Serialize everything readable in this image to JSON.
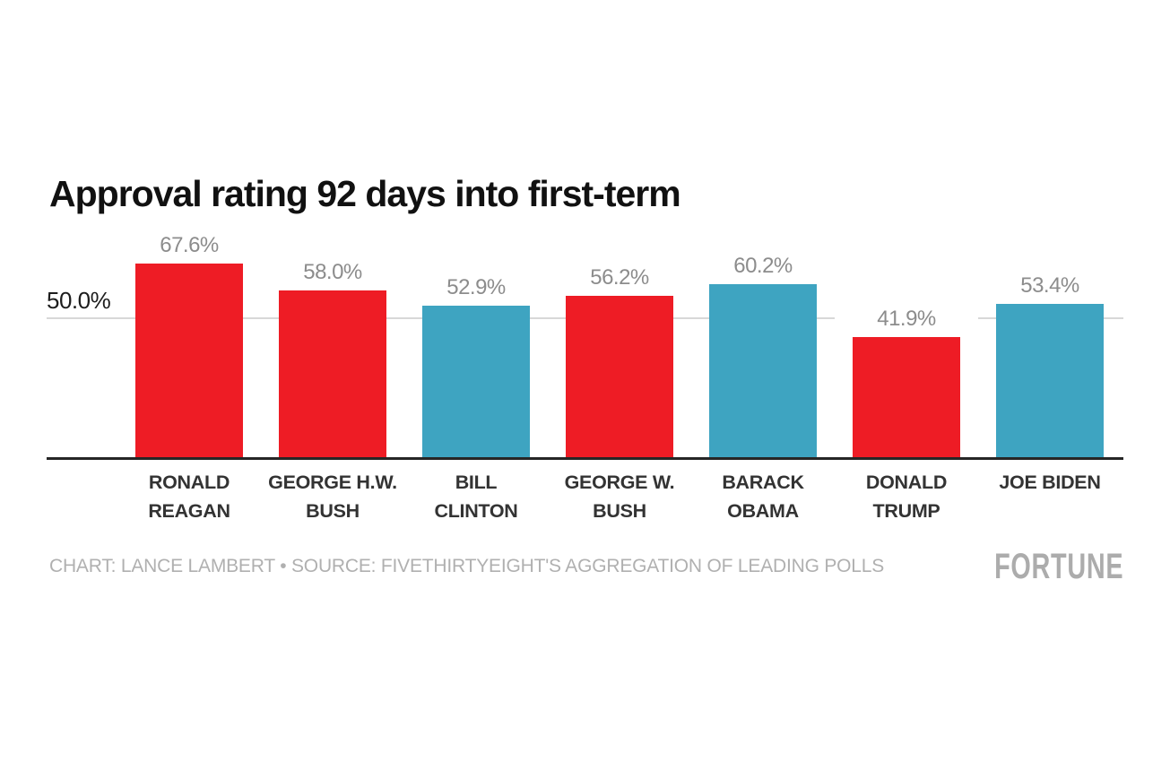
{
  "chart_data": {
    "type": "bar",
    "title": "Approval rating 92 days into first-term",
    "categories": [
      "RONALD REAGAN",
      "GEORGE H.W. BUSH",
      "BILL CLINTON",
      "GEORGE W. BUSH",
      "BARACK OBAMA",
      "DONALD TRUMP",
      "JOE BIDEN"
    ],
    "category_label_lines": [
      [
        "RONALD",
        "REAGAN"
      ],
      [
        "GEORGE H.W.",
        "BUSH"
      ],
      [
        "BILL",
        "CLINTON"
      ],
      [
        "GEORGE W.",
        "BUSH"
      ],
      [
        "BARACK",
        "OBAMA"
      ],
      [
        "DONALD",
        "TRUMP"
      ],
      [
        "JOE BIDEN"
      ]
    ],
    "values": [
      67.6,
      58.0,
      52.9,
      56.2,
      60.2,
      41.9,
      53.4
    ],
    "value_labels": [
      "67.6%",
      "58.0%",
      "52.9%",
      "56.2%",
      "60.2%",
      "41.9%",
      "53.4%"
    ],
    "bar_colors": [
      "#ee1c25",
      "#ee1c25",
      "#3ea4c1",
      "#ee1c25",
      "#3ea4c1",
      "#ee1c25",
      "#3ea4c1"
    ],
    "bar_parties": [
      "republican",
      "republican",
      "democrat",
      "republican",
      "democrat",
      "republican",
      "democrat"
    ],
    "xlabel": "",
    "ylabel": "",
    "ylim": [
      0,
      70
    ],
    "y_axis": {
      "tick_label": "50.0%",
      "tick_value": 50.0,
      "gridline_values": [
        50.0
      ]
    },
    "grid": "single horizontal gridline at 50%",
    "legend": "none"
  },
  "colors": {
    "republican_red": "#ee1c25",
    "democrat_blue": "#3ea4c1",
    "gridline": "#d8d8d8",
    "axis_line": "#262626",
    "value_label_gray": "#8c8c8c",
    "category_label_gray": "#333333",
    "credit_gray": "#b0b0b0",
    "brand_gray": "#acacac"
  },
  "footer": {
    "credit": "CHART: LANCE LAMBERT • SOURCE: FIVETHIRTYEIGHT'S AGGREGATION OF LEADING POLLS",
    "brand": "FORTUNE"
  }
}
